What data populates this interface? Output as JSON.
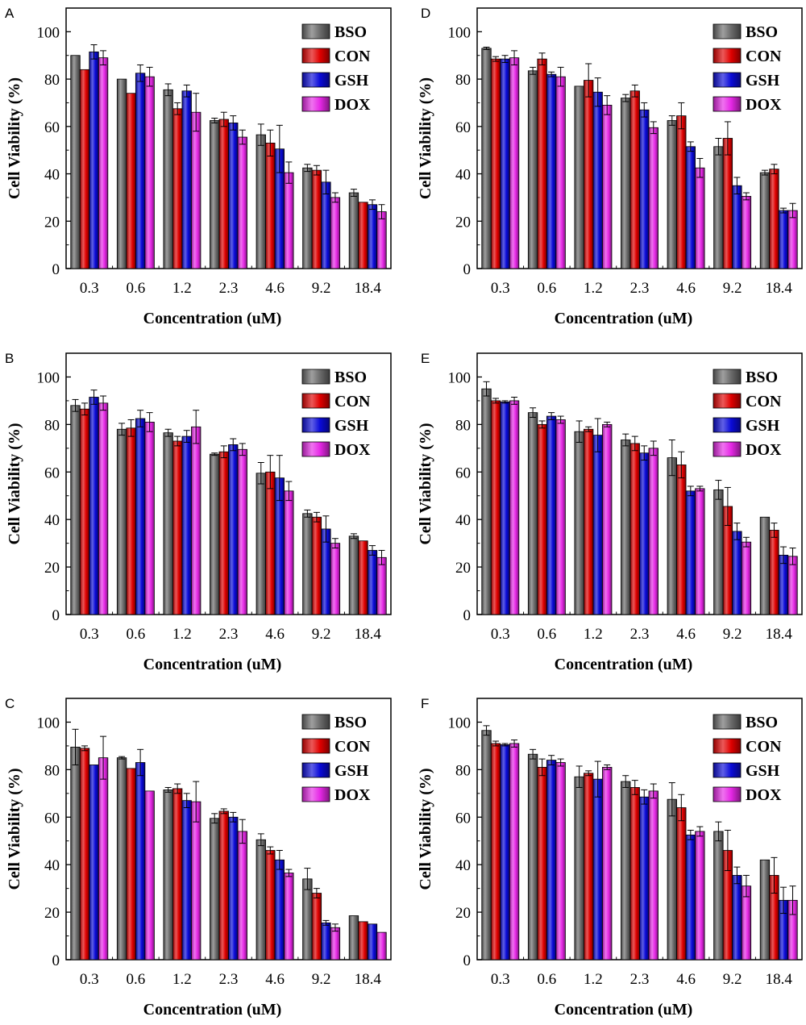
{
  "chart_data": [
    {
      "panel": "A",
      "type": "bar",
      "title": "",
      "xlabel": "Concentration (uM)",
      "ylabel": "Cell Viability (%)",
      "ylim": [
        0,
        110
      ],
      "yticks": [
        "0",
        "20",
        "40",
        "60",
        "80",
        "100"
      ],
      "categories": [
        "0.3",
        "0.6",
        "1.2",
        "2.3",
        "4.6",
        "9.2",
        "18.4"
      ],
      "legend_position": "top-right",
      "series": [
        {
          "name": "BSO",
          "values": [
            90,
            80,
            75.5,
            62.5,
            56.5,
            42.5,
            32
          ],
          "errors": [
            0,
            0,
            2.5,
            1,
            4.5,
            1.5,
            1.5
          ]
        },
        {
          "name": "CON",
          "values": [
            84,
            74,
            67.5,
            63,
            53,
            41.5,
            28
          ],
          "errors": [
            0,
            0,
            2.5,
            3,
            5.5,
            2,
            0
          ]
        },
        {
          "name": "GSH",
          "values": [
            91.5,
            82.5,
            75,
            61.5,
            50.5,
            36.5,
            27
          ],
          "errors": [
            3,
            3.5,
            2.5,
            3,
            10,
            5,
            2
          ]
        },
        {
          "name": "DOX",
          "values": [
            89,
            81,
            66,
            55.5,
            40.5,
            30,
            24
          ],
          "errors": [
            3,
            4,
            8,
            3,
            4.5,
            2,
            3
          ]
        }
      ]
    },
    {
      "panel": "B",
      "type": "bar",
      "title": "",
      "xlabel": "Concentration (uM)",
      "ylabel": "Cell Viability (%)",
      "ylim": [
        0,
        110
      ],
      "yticks": [
        "0",
        "20",
        "40",
        "60",
        "80",
        "100"
      ],
      "categories": [
        "0.3",
        "0.6",
        "1.2",
        "2.3",
        "4.6",
        "9.2",
        "18.4"
      ],
      "legend_position": "top-right",
      "series": [
        {
          "name": "BSO",
          "values": [
            88,
            78,
            76.5,
            67.5,
            59.5,
            42.5,
            33
          ],
          "errors": [
            2.5,
            2.5,
            1.5,
            0.5,
            4.5,
            1.5,
            1
          ]
        },
        {
          "name": "CON",
          "values": [
            86.5,
            78.5,
            73,
            68.5,
            60,
            41,
            31
          ],
          "errors": [
            2.5,
            3.5,
            2,
            2.5,
            7,
            2,
            0
          ]
        },
        {
          "name": "GSH",
          "values": [
            91.5,
            82.5,
            75,
            71.5,
            57.5,
            36,
            27
          ],
          "errors": [
            3,
            3.5,
            2.5,
            2.5,
            9.5,
            5.5,
            2
          ]
        },
        {
          "name": "DOX",
          "values": [
            89,
            81,
            79,
            69.5,
            52,
            30,
            24
          ],
          "errors": [
            3,
            4,
            7,
            2.5,
            4,
            2,
            3
          ]
        }
      ]
    },
    {
      "panel": "C",
      "type": "bar",
      "title": "",
      "xlabel": "Concentration (uM)",
      "ylabel": "Cell Viability (%)",
      "ylim": [
        0,
        110
      ],
      "yticks": [
        "0",
        "20",
        "40",
        "60",
        "80",
        "100"
      ],
      "categories": [
        "0.3",
        "0.6",
        "1.2",
        "2.3",
        "4.6",
        "9.2",
        "18.4"
      ],
      "legend_position": "top-right",
      "series": [
        {
          "name": "BSO",
          "values": [
            89.5,
            85,
            71.5,
            59.5,
            50.5,
            34,
            18.5
          ],
          "errors": [
            7.5,
            0.5,
            1,
            2,
            2.5,
            4.5,
            0
          ]
        },
        {
          "name": "CON",
          "values": [
            89,
            80.5,
            72,
            62.5,
            46,
            28,
            16
          ],
          "errors": [
            1,
            0,
            2,
            1,
            1.5,
            2,
            0
          ]
        },
        {
          "name": "GSH",
          "values": [
            82,
            83,
            67,
            60,
            42,
            15.5,
            15
          ],
          "errors": [
            0,
            5.5,
            3,
            2,
            4,
            1,
            0
          ]
        },
        {
          "name": "DOX",
          "values": [
            85,
            71,
            66.5,
            54,
            36.5,
            13.5,
            11.5
          ],
          "errors": [
            9,
            0,
            8.5,
            5,
            1.5,
            1.5,
            0
          ]
        }
      ]
    },
    {
      "panel": "D",
      "type": "bar",
      "title": "",
      "xlabel": "Concentration (uM)",
      "ylabel": "Cell Viability (%)",
      "ylim": [
        0,
        110
      ],
      "yticks": [
        "0",
        "20",
        "40",
        "60",
        "80",
        "100"
      ],
      "categories": [
        "0.3",
        "0.6",
        "1.2",
        "2.3",
        "4.6",
        "9.2",
        "18.4"
      ],
      "legend_position": "top-right",
      "series": [
        {
          "name": "BSO",
          "values": [
            93,
            83.5,
            77,
            72,
            62.5,
            51.5,
            40.5
          ],
          "errors": [
            0.5,
            1.5,
            0,
            1.5,
            2,
            3.5,
            1
          ]
        },
        {
          "name": "CON",
          "values": [
            88.5,
            88.5,
            79.5,
            75,
            64.5,
            55,
            42
          ],
          "errors": [
            1,
            2.5,
            7,
            2.5,
            5.5,
            7,
            2
          ]
        },
        {
          "name": "GSH",
          "values": [
            88.5,
            82,
            74.5,
            67,
            51.5,
            35,
            24.5
          ],
          "errors": [
            1.5,
            1,
            6,
            3,
            2,
            3.5,
            1
          ]
        },
        {
          "name": "DOX",
          "values": [
            89,
            81,
            69,
            59.5,
            42.5,
            30.5,
            24.5
          ],
          "errors": [
            3,
            4,
            4,
            2.5,
            4,
            1.5,
            3
          ]
        }
      ]
    },
    {
      "panel": "E",
      "type": "bar",
      "title": "",
      "xlabel": "Concentration (uM)",
      "ylabel": "Cell Viability (%)",
      "ylim": [
        0,
        110
      ],
      "yticks": [
        "0",
        "20",
        "40",
        "60",
        "80",
        "100"
      ],
      "categories": [
        "0.3",
        "0.6",
        "1.2",
        "2.3",
        "4.6",
        "9.2",
        "18.4"
      ],
      "legend_position": "top-right",
      "series": [
        {
          "name": "BSO",
          "values": [
            95,
            85,
            77,
            73.5,
            66,
            52.5,
            41
          ],
          "errors": [
            3,
            2,
            4.5,
            2.5,
            7.5,
            4,
            0
          ]
        },
        {
          "name": "CON",
          "values": [
            90,
            80,
            78,
            72,
            63,
            45.5,
            35.5
          ],
          "errors": [
            1,
            1.5,
            1,
            3,
            5.5,
            8,
            3
          ]
        },
        {
          "name": "GSH",
          "values": [
            89.5,
            83.5,
            75.5,
            68,
            52,
            35,
            25
          ],
          "errors": [
            0.5,
            1.5,
            7,
            3,
            2,
            3.5,
            3.5
          ]
        },
        {
          "name": "DOX",
          "values": [
            90,
            82,
            80,
            70,
            53,
            30.5,
            24.5
          ],
          "errors": [
            1.5,
            1.5,
            1,
            3,
            1,
            2,
            3.5
          ]
        }
      ]
    },
    {
      "panel": "F",
      "type": "bar",
      "title": "",
      "xlabel": "Concentration (uM)",
      "ylabel": "Cell Viability (%)",
      "ylim": [
        0,
        110
      ],
      "yticks": [
        "0",
        "20",
        "40",
        "60",
        "80",
        "100"
      ],
      "categories": [
        "0.3",
        "0.6",
        "1.2",
        "2.3",
        "4.6",
        "9.2",
        "18.4"
      ],
      "legend_position": "top-right",
      "series": [
        {
          "name": "BSO",
          "values": [
            96.5,
            86.5,
            77,
            75,
            67.5,
            54,
            42
          ],
          "errors": [
            2,
            2,
            4.5,
            2.5,
            7,
            4,
            0
          ]
        },
        {
          "name": "CON",
          "values": [
            91,
            81,
            78.5,
            72.5,
            64,
            46,
            35.5
          ],
          "errors": [
            1,
            3.5,
            1,
            3,
            5.5,
            8.5,
            7.5
          ]
        },
        {
          "name": "GSH",
          "values": [
            90.5,
            84,
            76,
            68.5,
            52.5,
            35.5,
            25
          ],
          "errors": [
            0.5,
            2,
            7.5,
            3,
            2,
            3.5,
            5.5
          ]
        },
        {
          "name": "DOX",
          "values": [
            91,
            83,
            81,
            71,
            54,
            31,
            25
          ],
          "errors": [
            1.5,
            1.5,
            1,
            3,
            2,
            4.5,
            6
          ]
        }
      ]
    }
  ],
  "colors": {
    "BSO": "#6b6b6b",
    "CON": "#e00000",
    "GSH": "#0a0ad8",
    "DOX": "#e628e6"
  }
}
